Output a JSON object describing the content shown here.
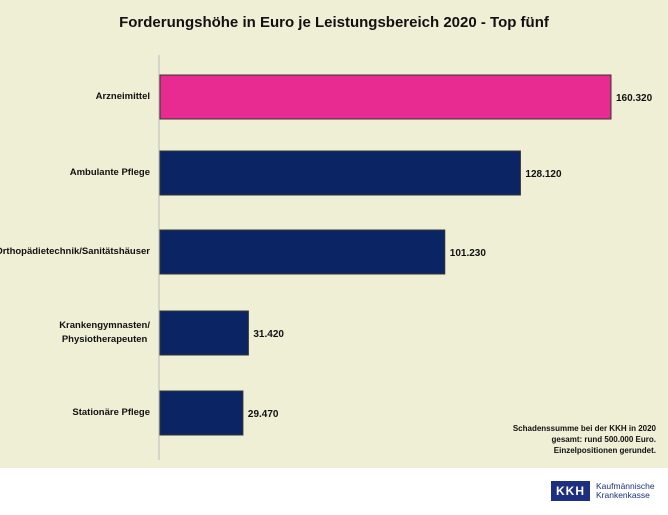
{
  "chart_data": {
    "type": "bar",
    "orientation": "horizontal",
    "title": "Forderungshöhe in Euro je Leistungsbereich 2020 - Top fünf",
    "categories": [
      "Arzneimittel",
      "Ambulante Pflege",
      "Orthopädietechnik/Sanitätshäuser",
      "Krankengymnasten/ Physiotherapeuten",
      "Stationäre Pflege"
    ],
    "values": [
      160320,
      128120,
      101230,
      31420,
      29470
    ],
    "value_labels": [
      "160.320",
      "128.120",
      "101.230",
      "31.420",
      "29.470"
    ],
    "colors": [
      "#e82b91",
      "#0b2463",
      "#0b2463",
      "#0b2463",
      "#0b2463"
    ],
    "xlim": [
      0,
      160320
    ],
    "grid": false
  },
  "note": [
    "Schadenssumme bei der KKH in 2020",
    "gesamt: rund 500.000 Euro.",
    "Einzelpositionen gerundet."
  ],
  "logo": {
    "mark": "KKH",
    "line1": "Kaufmännische",
    "line2": "Krankenkasse"
  }
}
